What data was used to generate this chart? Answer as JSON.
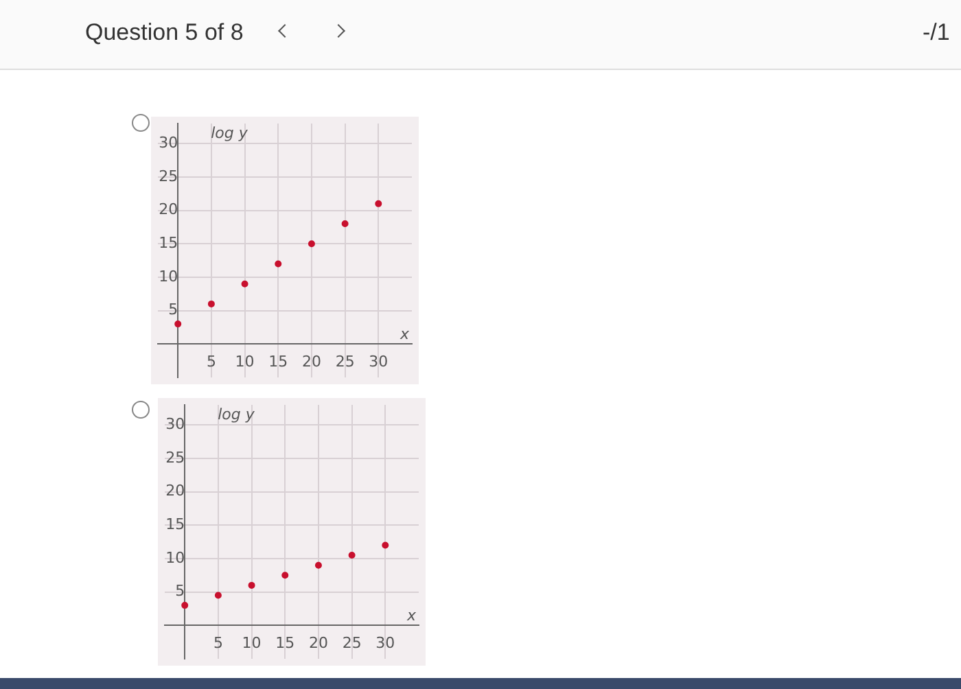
{
  "chart_data": [
    {
      "type": "scatter",
      "annotations": [
        "Question 5 of 8",
        "-/1"
      ],
      "xlabel": "x",
      "ylabel": "log y",
      "x": [
        0,
        5,
        10,
        15,
        20,
        25,
        30
      ],
      "series": [
        {
          "color": "#c8102e",
          "values": [
            3,
            6,
            9,
            12,
            15,
            18,
            21
          ]
        }
      ],
      "xlim": [
        -3,
        35
      ],
      "ylim": [
        -5,
        33
      ],
      "xticks": [
        5,
        10,
        15,
        20,
        25,
        30
      ],
      "yticks": [
        5,
        10,
        15,
        20,
        25,
        30
      ],
      "grid": true,
      "marker": "circle",
      "legend": false
    },
    {
      "type": "scatter",
      "xlabel": "x",
      "ylabel": "log y",
      "x": [
        0,
        5,
        10,
        15,
        20,
        25,
        30
      ],
      "series": [
        {
          "color": "#c8102e",
          "values": [
            3,
            4.5,
            6,
            7.5,
            9,
            10.5,
            12
          ]
        }
      ],
      "xlim": [
        -3,
        35
      ],
      "ylim": [
        -5,
        33
      ],
      "xticks": [
        5,
        10,
        15,
        20,
        25,
        30
      ],
      "yticks": [
        5,
        10,
        15,
        20,
        25,
        30
      ],
      "grid": true,
      "marker": "circle",
      "legend": false
    }
  ]
}
